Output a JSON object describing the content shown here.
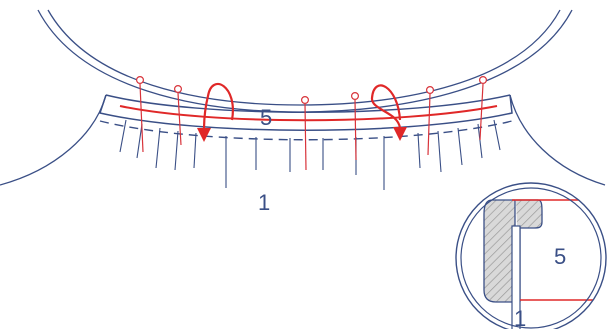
{
  "diagram": {
    "labels": {
      "bias_strip": "5",
      "garment": "1",
      "detail_bias_strip": "5",
      "detail_garment": "1"
    },
    "colors": {
      "outline_blue": "#3a4f86",
      "stitch_red": "#e02828",
      "pin_red": "#d8333a",
      "hatch_gray": "#9a9a9a",
      "fill_gray": "#d9d9d9"
    },
    "icons": [
      "pin-icon",
      "turn-arrow-icon",
      "magnified-detail-icon"
    ]
  }
}
